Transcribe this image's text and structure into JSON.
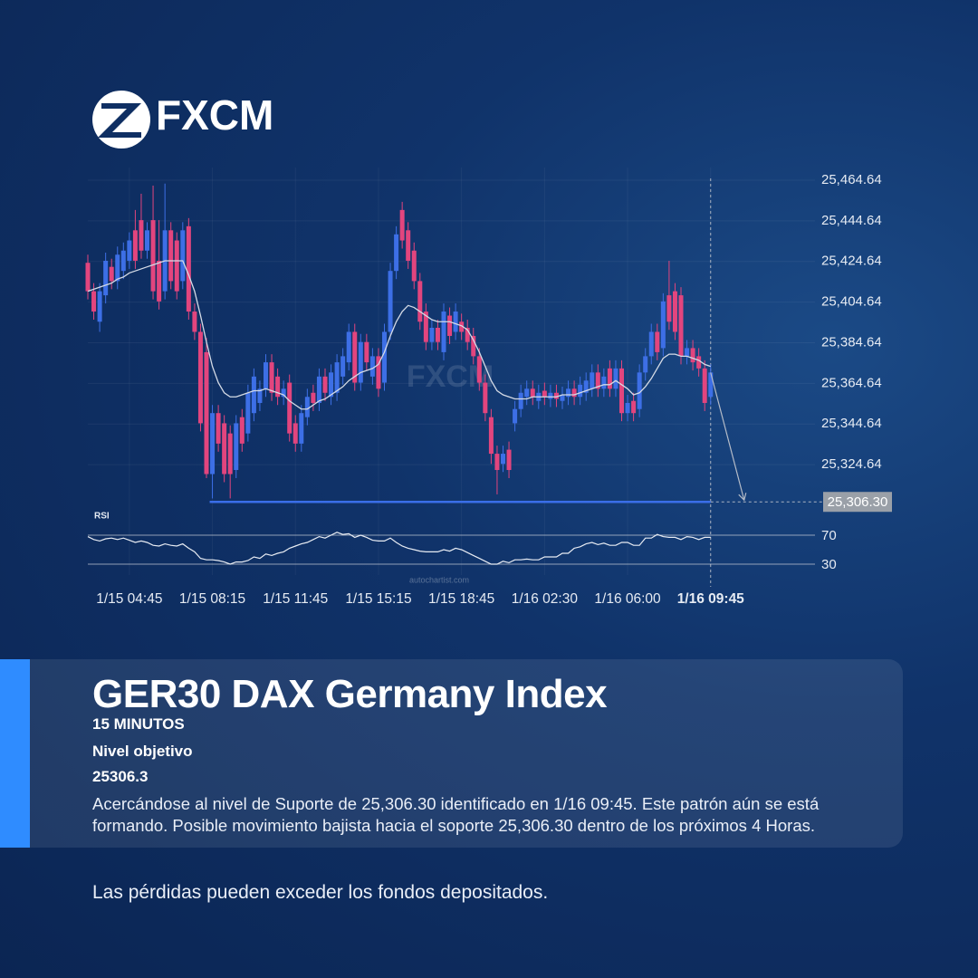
{
  "logo": {
    "text": "FXCM"
  },
  "chart_data": {
    "type": "candlestick",
    "categories": [
      null,
      null,
      null,
      null,
      null,
      null,
      null,
      "1/15 04:45",
      null,
      null,
      null,
      null,
      null,
      null,
      null,
      null,
      null,
      null,
      null,
      null,
      null,
      "1/15 08:15",
      null,
      null,
      null,
      null,
      null,
      null,
      null,
      null,
      null,
      null,
      null,
      null,
      null,
      "1/15 11:45",
      null,
      null,
      null,
      null,
      null,
      null,
      null,
      null,
      null,
      null,
      null,
      null,
      null,
      "1/15 15:15",
      null,
      null,
      null,
      null,
      null,
      null,
      null,
      null,
      null,
      null,
      null,
      null,
      null,
      "1/15 18:45",
      null,
      null,
      null,
      null,
      null,
      null,
      null,
      null,
      null,
      null,
      null,
      null,
      null,
      "1/16 02:30",
      null,
      null,
      null,
      null,
      null,
      null,
      null,
      null,
      null,
      null,
      null,
      null,
      null,
      "1/16 06:00",
      null,
      null,
      null,
      null,
      null,
      null,
      null,
      null,
      null,
      null,
      null,
      null,
      null,
      "1/16 09:45"
    ],
    "open": [
      25424,
      25410,
      25395,
      25408,
      25422,
      25415,
      25420,
      25425,
      25440,
      25445,
      25430,
      25445,
      25425,
      25410,
      25440,
      25435,
      25415,
      25442,
      25400,
      25390,
      25380,
      25320,
      25350,
      25345,
      25340,
      25322,
      25348,
      25340,
      25350,
      25355,
      25362,
      25375,
      25368,
      25358,
      25365,
      25345,
      25335,
      25348,
      25360,
      25355,
      25368,
      25358,
      25360,
      25368,
      25375,
      25390,
      25365,
      25385,
      25368,
      25378,
      25365,
      25390,
      25420,
      25450,
      25440,
      25430,
      25415,
      25400,
      25385,
      25392,
      25380,
      25398,
      25390,
      25395,
      25392,
      25388,
      25378,
      25365,
      25348,
      25330,
      25325,
      25332,
      25345,
      25352,
      25358,
      25362,
      25356,
      25361,
      25357,
      25360,
      25356,
      25358,
      25362,
      25358,
      25360,
      25362,
      25370,
      25362,
      25372,
      25362,
      25372,
      25350,
      25356,
      25352,
      25370,
      25378,
      25390,
      25382,
      25408,
      25410,
      25408,
      25378,
      25382,
      25378,
      25372,
      25358
    ],
    "high": [
      25428,
      25414,
      25414,
      25429,
      25426,
      25432,
      25434,
      25439,
      25450,
      25458,
      25444,
      25462,
      25445,
      25463,
      25444,
      25439,
      25444,
      25446,
      25404,
      25394,
      25387,
      25354,
      25354,
      25349,
      25344,
      25349,
      25352,
      25364,
      25372,
      25366,
      25379,
      25379,
      25372,
      25366,
      25369,
      25349,
      25354,
      25362,
      25364,
      25372,
      25372,
      25374,
      25379,
      25382,
      25394,
      25394,
      25389,
      25389,
      25382,
      25382,
      25394,
      25424,
      25442,
      25454,
      25444,
      25434,
      25419,
      25404,
      25396,
      25396,
      25404,
      25402,
      25404,
      25399,
      25396,
      25392,
      25382,
      25369,
      25352,
      25334,
      25334,
      25336,
      25356,
      25364,
      25366,
      25366,
      25364,
      25365,
      25364,
      25364,
      25363,
      25366,
      25366,
      25368,
      25370,
      25374,
      25374,
      25372,
      25376,
      25376,
      25376,
      25359,
      25360,
      25374,
      25382,
      25394,
      25394,
      25409,
      25425,
      25414,
      25412,
      25386,
      25386,
      25382,
      25376,
      25374
    ],
    "low": [
      25406,
      25396,
      25390,
      25404,
      25411,
      25411,
      25416,
      25421,
      25421,
      25426,
      25426,
      25406,
      25401,
      25406,
      25411,
      25406,
      25411,
      25396,
      25386,
      25341,
      25318,
      25308,
      25331,
      25316,
      25308,
      25318,
      25331,
      25336,
      25346,
      25351,
      25358,
      25356,
      25354,
      25354,
      25336,
      25331,
      25331,
      25344,
      25351,
      25351,
      25356,
      25354,
      25356,
      25364,
      25371,
      25361,
      25361,
      25371,
      25364,
      25358,
      25361,
      25386,
      25416,
      25431,
      25421,
      25411,
      25391,
      25381,
      25381,
      25381,
      25376,
      25384,
      25386,
      25386,
      25381,
      25374,
      25361,
      25346,
      25325,
      25310,
      25321,
      25318,
      25341,
      25348,
      25354,
      25354,
      25352,
      25354,
      25353,
      25353,
      25352,
      25354,
      25354,
      25354,
      25356,
      25358,
      25358,
      25358,
      25358,
      25358,
      25346,
      25346,
      25346,
      25348,
      25366,
      25374,
      25376,
      25378,
      25391,
      25386,
      25374,
      25374,
      25371,
      25368,
      25351,
      25354
    ],
    "close": [
      25410,
      25400,
      25410,
      25425,
      25415,
      25428,
      25430,
      25435,
      25425,
      25430,
      25440,
      25410,
      25405,
      25440,
      25415,
      25410,
      25440,
      25400,
      25390,
      25345,
      25320,
      25350,
      25335,
      25320,
      25320,
      25345,
      25335,
      25360,
      25368,
      25362,
      25375,
      25360,
      25358,
      25362,
      25340,
      25335,
      25350,
      25358,
      25355,
      25368,
      25360,
      25370,
      25375,
      25378,
      25390,
      25365,
      25385,
      25375,
      25378,
      25362,
      25390,
      25420,
      25438,
      25435,
      25425,
      25415,
      25395,
      25385,
      25392,
      25385,
      25400,
      25388,
      25400,
      25390,
      25385,
      25378,
      25365,
      25350,
      25330,
      25322,
      25330,
      25322,
      25352,
      25360,
      25362,
      25358,
      25360,
      25358,
      25360,
      25357,
      25359,
      25362,
      25358,
      25364,
      25366,
      25370,
      25362,
      25368,
      25362,
      25372,
      25350,
      25355,
      25350,
      25370,
      25378,
      25390,
      25380,
      25405,
      25395,
      25390,
      25378,
      25382,
      25375,
      25372,
      25355,
      25370
    ],
    "up_color": "#3d6fe6",
    "down_color": "#e2457e",
    "ylim": [
      25301.5,
      25470.9
    ],
    "yticks": [
      {
        "value": 25464.64,
        "label": "25,464.64"
      },
      {
        "value": 25444.64,
        "label": "25,444.64"
      },
      {
        "value": 25424.64,
        "label": "25,424.64"
      },
      {
        "value": 25404.64,
        "label": "25,404.64"
      },
      {
        "value": 25384.64,
        "label": "25,384.64"
      },
      {
        "value": 25364.64,
        "label": "25,364.64"
      },
      {
        "value": 25344.64,
        "label": "25,344.64"
      },
      {
        "value": 25324.64,
        "label": "25,324.64"
      }
    ],
    "grid": true,
    "support": {
      "value": 25306.3,
      "label": "25,306.30",
      "color": "#3a6ee8"
    },
    "moving_average": {
      "color": "#d5dbe6",
      "values": [
        25410,
        25411,
        25412,
        25413,
        25414,
        25416,
        25417,
        25419,
        25420,
        25421,
        25422,
        25423,
        25424,
        25425,
        25425,
        25425,
        25425,
        25418,
        25410,
        25398,
        25385,
        25373,
        25365,
        25360,
        25358,
        25358,
        25359,
        25360,
        25361,
        25361,
        25362,
        25361,
        25360,
        25359,
        25356,
        25354,
        25352,
        25352,
        25354,
        25356,
        25357,
        25359,
        25361,
        25363,
        25366,
        25368,
        25370,
        25371,
        25372,
        25374,
        25380,
        25388,
        25395,
        25400,
        25403,
        25402,
        25400,
        25398,
        25396,
        25395,
        25395,
        25395,
        25394,
        25393,
        25391,
        25386,
        25380,
        25373,
        25366,
        25361,
        25359,
        25358,
        25357,
        25357,
        25357,
        25358,
        25358,
        25358,
        25358,
        25358,
        25359,
        25359,
        25359,
        25360,
        25361,
        25362,
        25363,
        25364,
        25364,
        25366,
        25364,
        25362,
        25359,
        25360,
        25363,
        25367,
        25372,
        25377,
        25379,
        25379,
        25378,
        25378,
        25377,
        25376,
        25374,
        25373
      ]
    },
    "rsi": {
      "title": "RSI",
      "color": "#e8ecf3",
      "ylim": [
        15,
        90
      ],
      "yticks": [
        70,
        30
      ],
      "values": [
        68,
        64,
        62,
        65,
        66,
        64,
        66,
        63,
        60,
        62,
        60,
        56,
        55,
        58,
        56,
        55,
        58,
        52,
        47,
        38,
        36,
        36,
        35,
        33,
        30,
        33,
        33,
        35,
        40,
        38,
        44,
        42,
        45,
        47,
        52,
        55,
        58,
        60,
        64,
        68,
        66,
        70,
        74,
        71,
        72,
        67,
        70,
        67,
        63,
        62,
        62,
        66,
        60,
        55,
        52,
        50,
        48,
        47,
        47,
        47,
        50,
        48,
        52,
        50,
        46,
        42,
        38,
        34,
        30,
        30,
        34,
        32,
        36,
        36,
        37,
        36,
        36,
        40,
        40,
        40,
        45,
        45,
        52,
        54,
        58,
        60,
        57,
        59,
        56,
        56,
        60,
        60,
        56,
        56,
        66,
        66,
        71,
        68,
        67,
        67,
        64,
        68,
        67,
        64,
        67,
        67
      ]
    },
    "watermark": "autochartist.com"
  },
  "card": {
    "title": "GER30 DAX Germany Index",
    "timeframe": "15 MINUTOS",
    "target_label": "Nivel objetivo",
    "target_value": "25306.3",
    "description": "Acercándose al nivel de Suporte de 25,306.30 identificado en 1/16 09:45. Este patrón aún se está formando. Posible movimiento bajista hacia el soporte 25,306.30 dentro de los próximos 4 Horas."
  },
  "disclaimer": "Las pérdidas pueden exceder los fondos depositados."
}
